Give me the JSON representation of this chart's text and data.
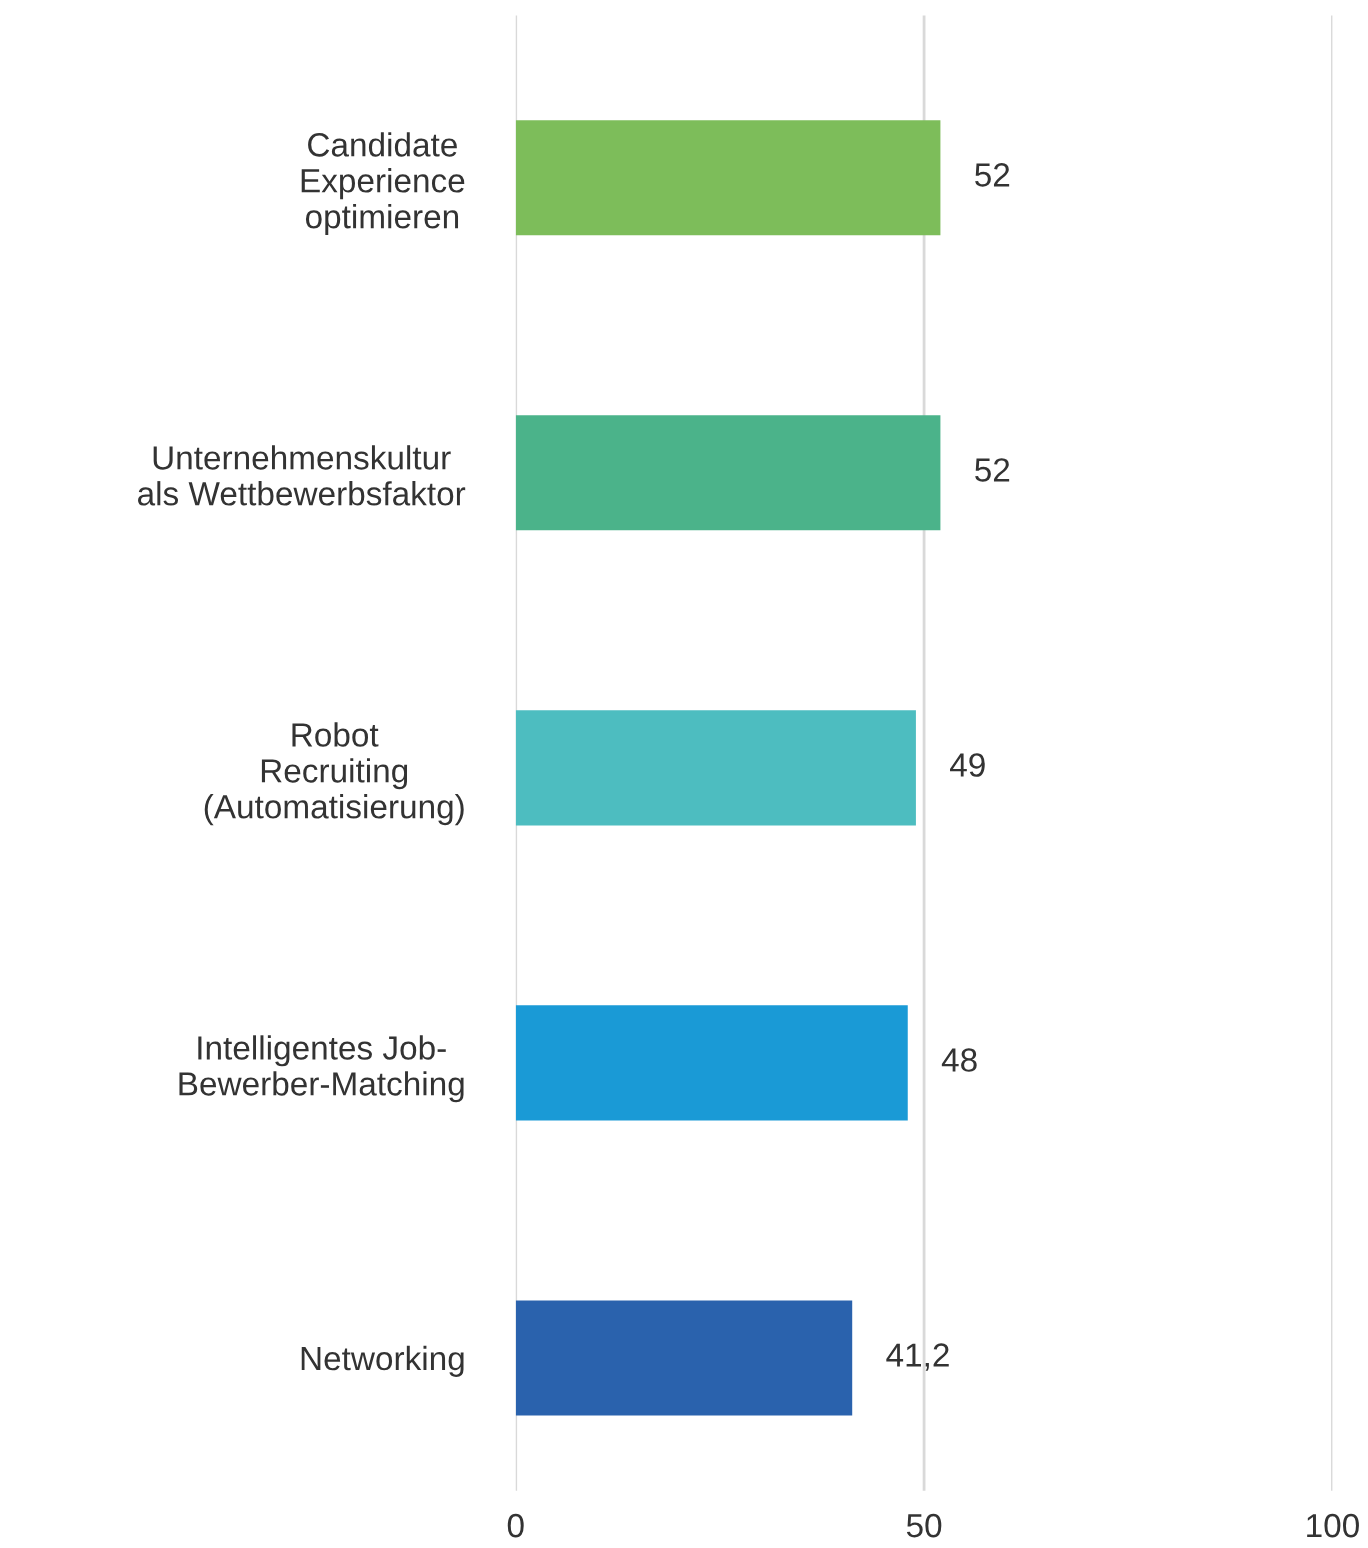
{
  "chart_data": {
    "type": "bar",
    "orientation": "horizontal",
    "categories": [
      "Candidate\nExperience\noptimieren",
      "Unternehmenskultur\nals Wettbewerbsfaktor",
      "Robot\nRecruiting\n(Automatisierung)",
      "Intelligentes Job-\nBewerber-Matching",
      "Networking"
    ],
    "values": [
      52,
      52,
      49,
      48,
      41.2
    ],
    "colors": [
      "#7dbd5a",
      "#4bb38a",
      "#4dbdc0",
      "#1a9ad6",
      "#2a62ad"
    ],
    "value_labels": [
      "52",
      "52",
      "49",
      "48",
      "41,2"
    ],
    "xlim": [
      0,
      100
    ],
    "xticks": [
      0,
      50,
      100
    ],
    "grid": "x"
  }
}
